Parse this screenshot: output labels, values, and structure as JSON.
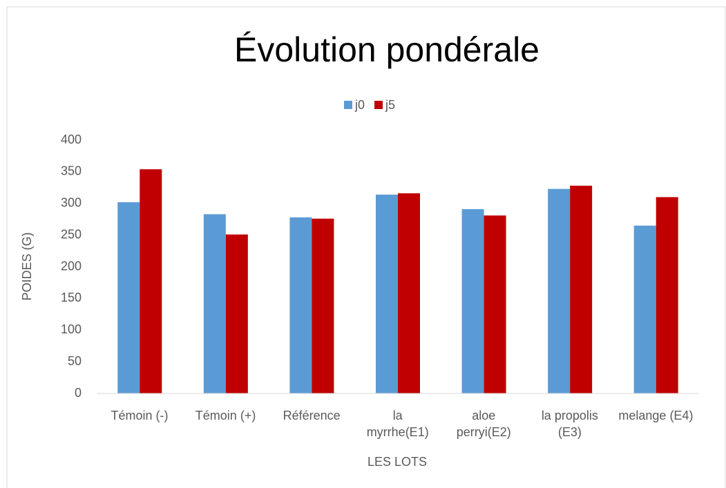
{
  "chart_data": {
    "type": "bar",
    "title": "Évolution pondérale",
    "x_label": "LES LOTS",
    "y_label": "POIDES (G)",
    "categories": [
      "Témoin (-)",
      "Témoin (+)",
      "Référence",
      "la\nmyrrhe(E1)",
      "aloe\nperryi(E2)",
      "la propolis\n(E3)",
      "melange (E4)"
    ],
    "series": [
      {
        "name": "j0",
        "color": "#5b9bd5",
        "values": [
          302,
          283,
          278,
          314,
          291,
          323,
          265
        ]
      },
      {
        "name": "j5",
        "color": "#c00000",
        "values": [
          354,
          251,
          276,
          316,
          281,
          328,
          310
        ]
      }
    ],
    "ylim": [
      0,
      400
    ],
    "yticks": [
      0,
      50,
      100,
      150,
      200,
      250,
      300,
      350,
      400
    ],
    "grid": false,
    "legend": "top"
  }
}
